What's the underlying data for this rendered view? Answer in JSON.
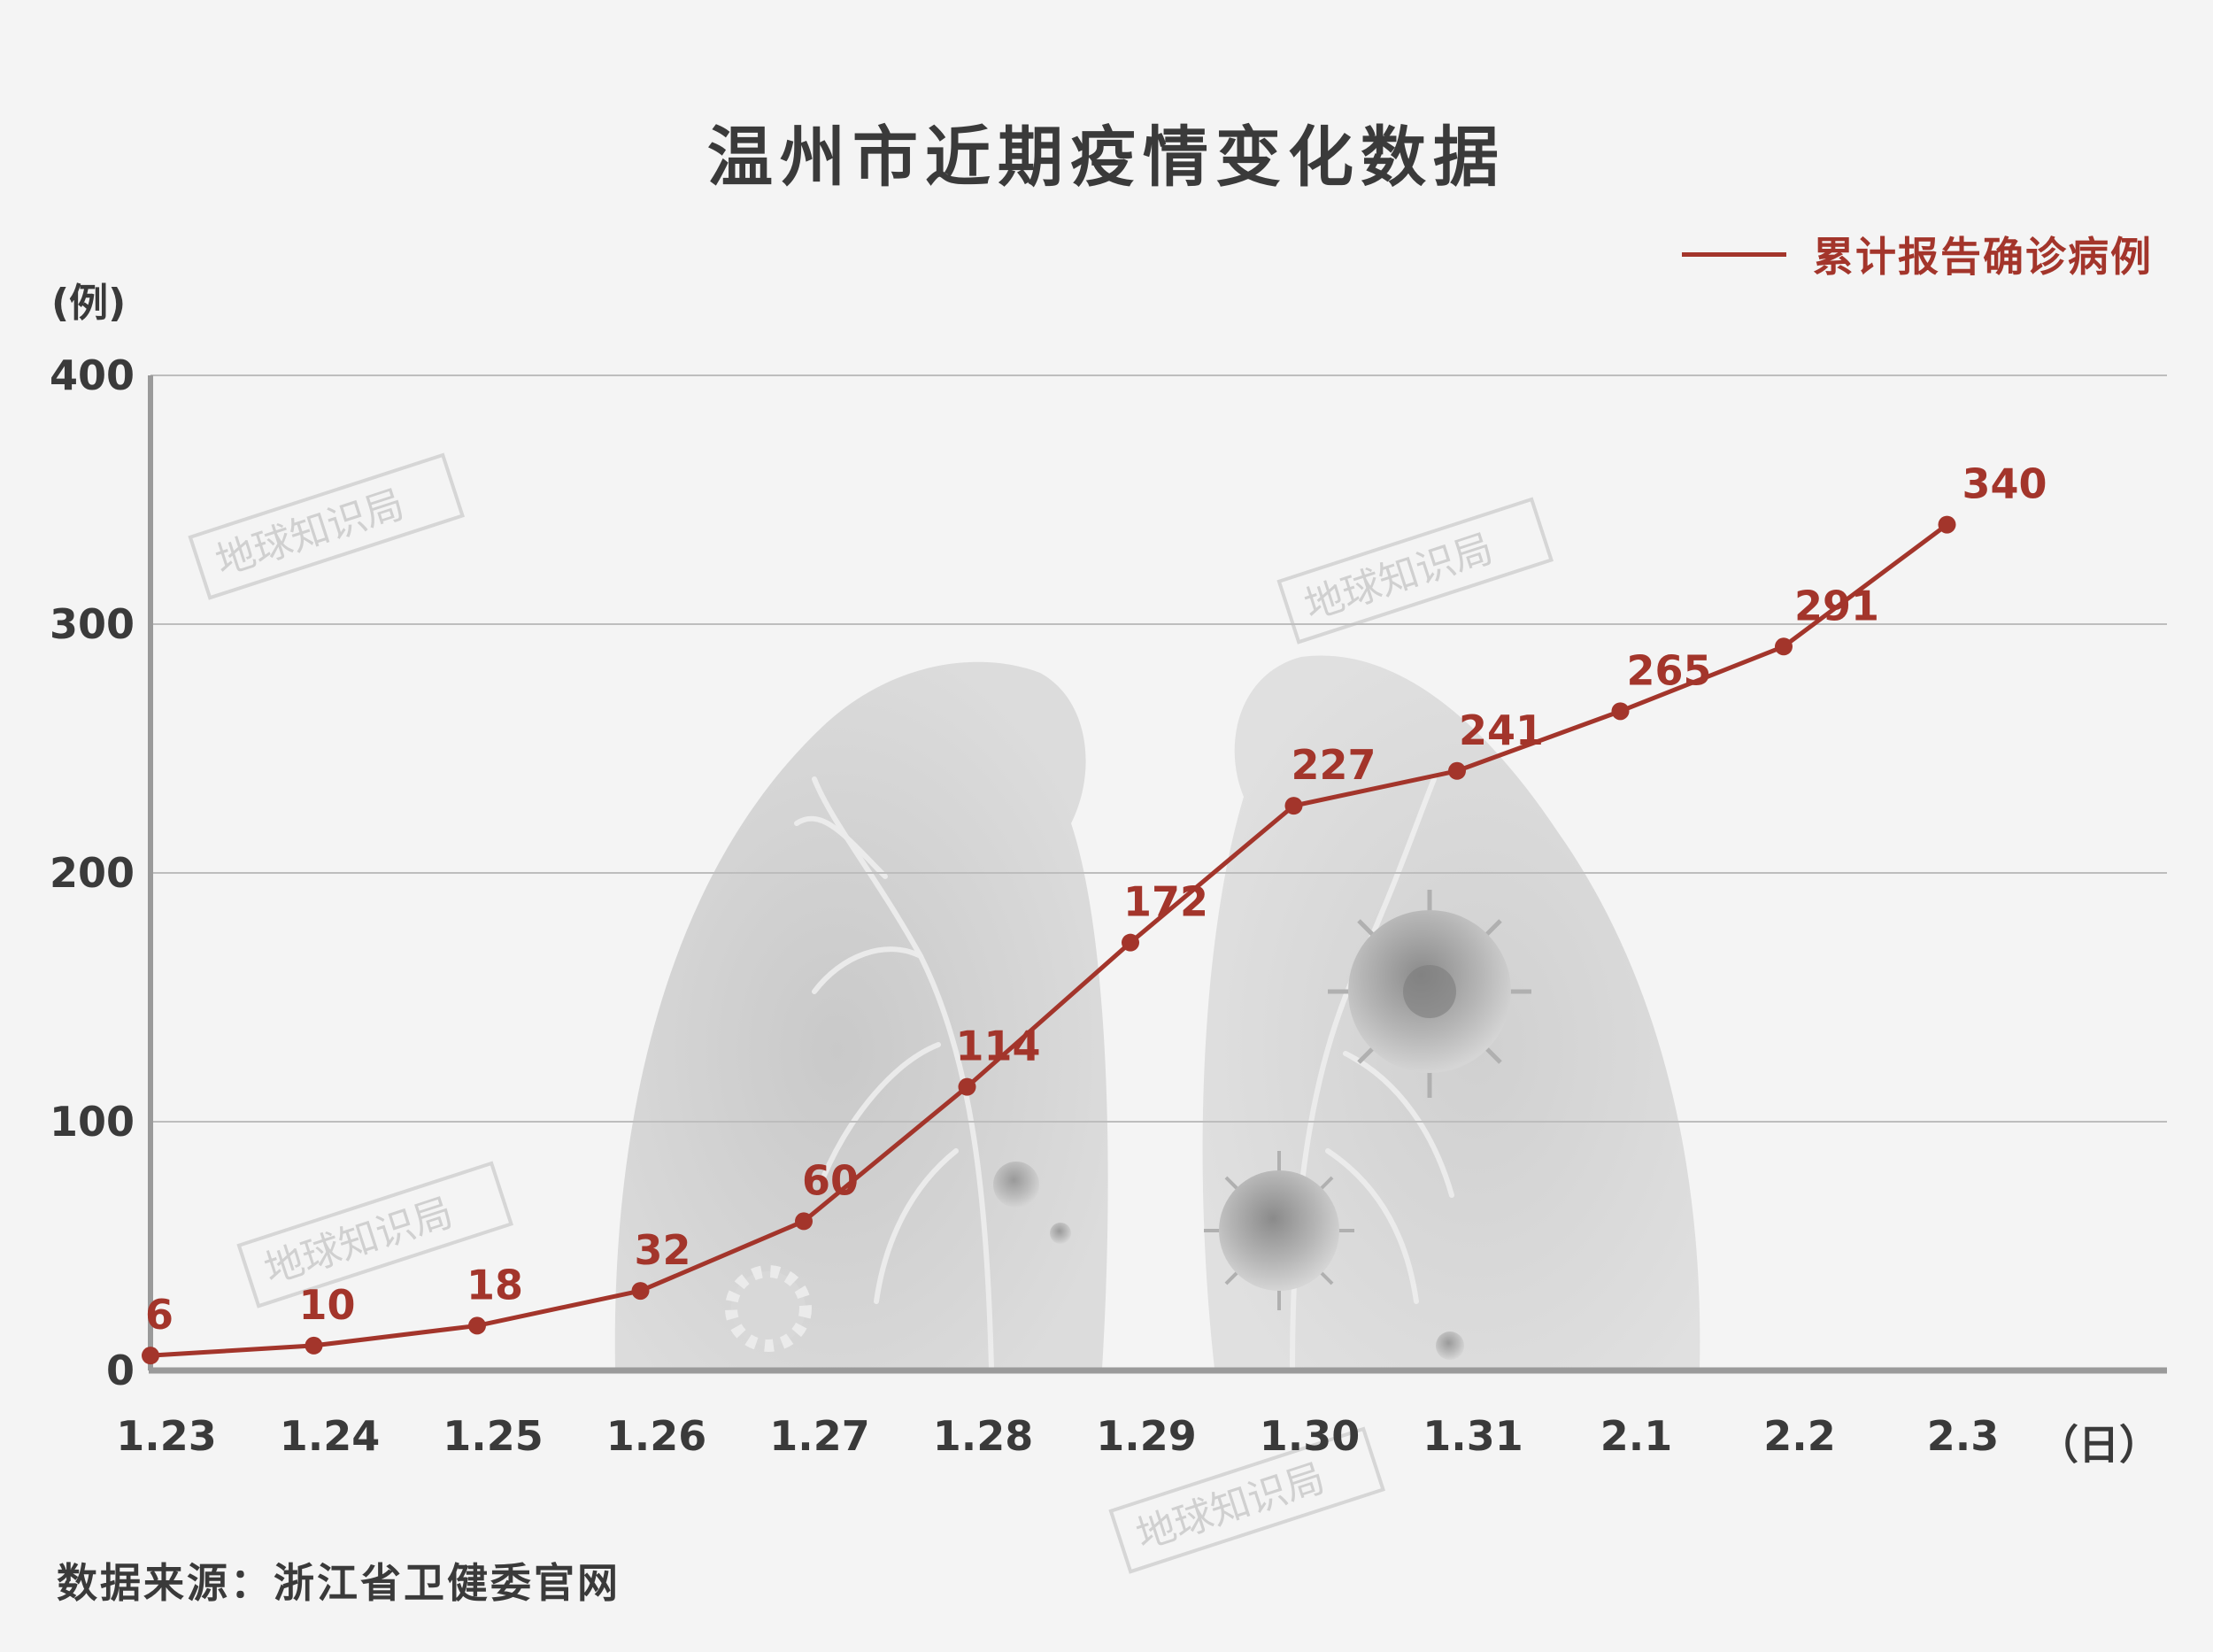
{
  "title": "温州市近期疫情变化数据",
  "source": "数据来源：浙江省卫健委官网",
  "watermark": "地球知识局",
  "colors": {
    "line": "#a3352b",
    "grid": "#bdbdbd",
    "axis": "#9a9a9a",
    "text": "#3a3a3a",
    "background": "#f4f4f4"
  },
  "chart_data": {
    "type": "line",
    "categories": [
      "1.23",
      "1.24",
      "1.25",
      "1.26",
      "1.27",
      "1.28",
      "1.29",
      "1.30",
      "1.31",
      "2.1",
      "2.2",
      "2.3"
    ],
    "series": [
      {
        "name": "累计报告确诊病例",
        "values": [
          6,
          10,
          18,
          32,
          60,
          114,
          172,
          227,
          241,
          265,
          291,
          340
        ]
      }
    ],
    "yunit": "(例)",
    "xunit": "（日）",
    "ylim": [
      0,
      400
    ],
    "yticks": [
      0,
      100,
      200,
      300,
      400
    ],
    "grid": true,
    "legend_position": "top-right"
  }
}
